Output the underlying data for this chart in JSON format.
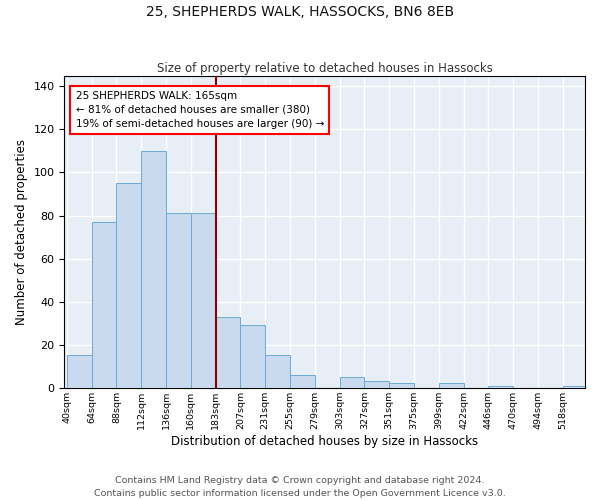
{
  "title": "25, SHEPHERDS WALK, HASSOCKS, BN6 8EB",
  "subtitle": "Size of property relative to detached houses in Hassocks",
  "xlabel": "Distribution of detached houses by size in Hassocks",
  "ylabel": "Number of detached properties",
  "bar_color": "#c9d9ee",
  "bar_edge_color": "#6aaad4",
  "background_color": "#e8eef6",
  "grid_color": "#ffffff",
  "vline_color": "#8b0000",
  "annotation_text": "25 SHEPHERDS WALK: 165sqm\n← 81% of detached houses are smaller (380)\n19% of semi-detached houses are larger (90) →",
  "annotation_fontsize": 7.5,
  "bins": [
    40,
    64,
    88,
    112,
    136,
    160,
    183,
    207,
    231,
    255,
    279,
    303,
    327,
    351,
    375,
    399,
    422,
    446,
    470,
    494,
    518
  ],
  "counts": [
    15,
    77,
    95,
    110,
    81,
    81,
    33,
    29,
    15,
    6,
    0,
    5,
    3,
    2,
    0,
    2,
    0,
    1,
    0,
    0,
    1
  ],
  "ylim": [
    0,
    145
  ],
  "yticks": [
    0,
    20,
    40,
    60,
    80,
    100,
    120,
    140
  ],
  "footer": "Contains HM Land Registry data © Crown copyright and database right 2024.\nContains public sector information licensed under the Open Government Licence v3.0.",
  "footer_fontsize": 6.8,
  "title_fontsize": 10,
  "subtitle_fontsize": 8.5,
  "ylabel_fontsize": 8.5,
  "xlabel_fontsize": 8.5
}
